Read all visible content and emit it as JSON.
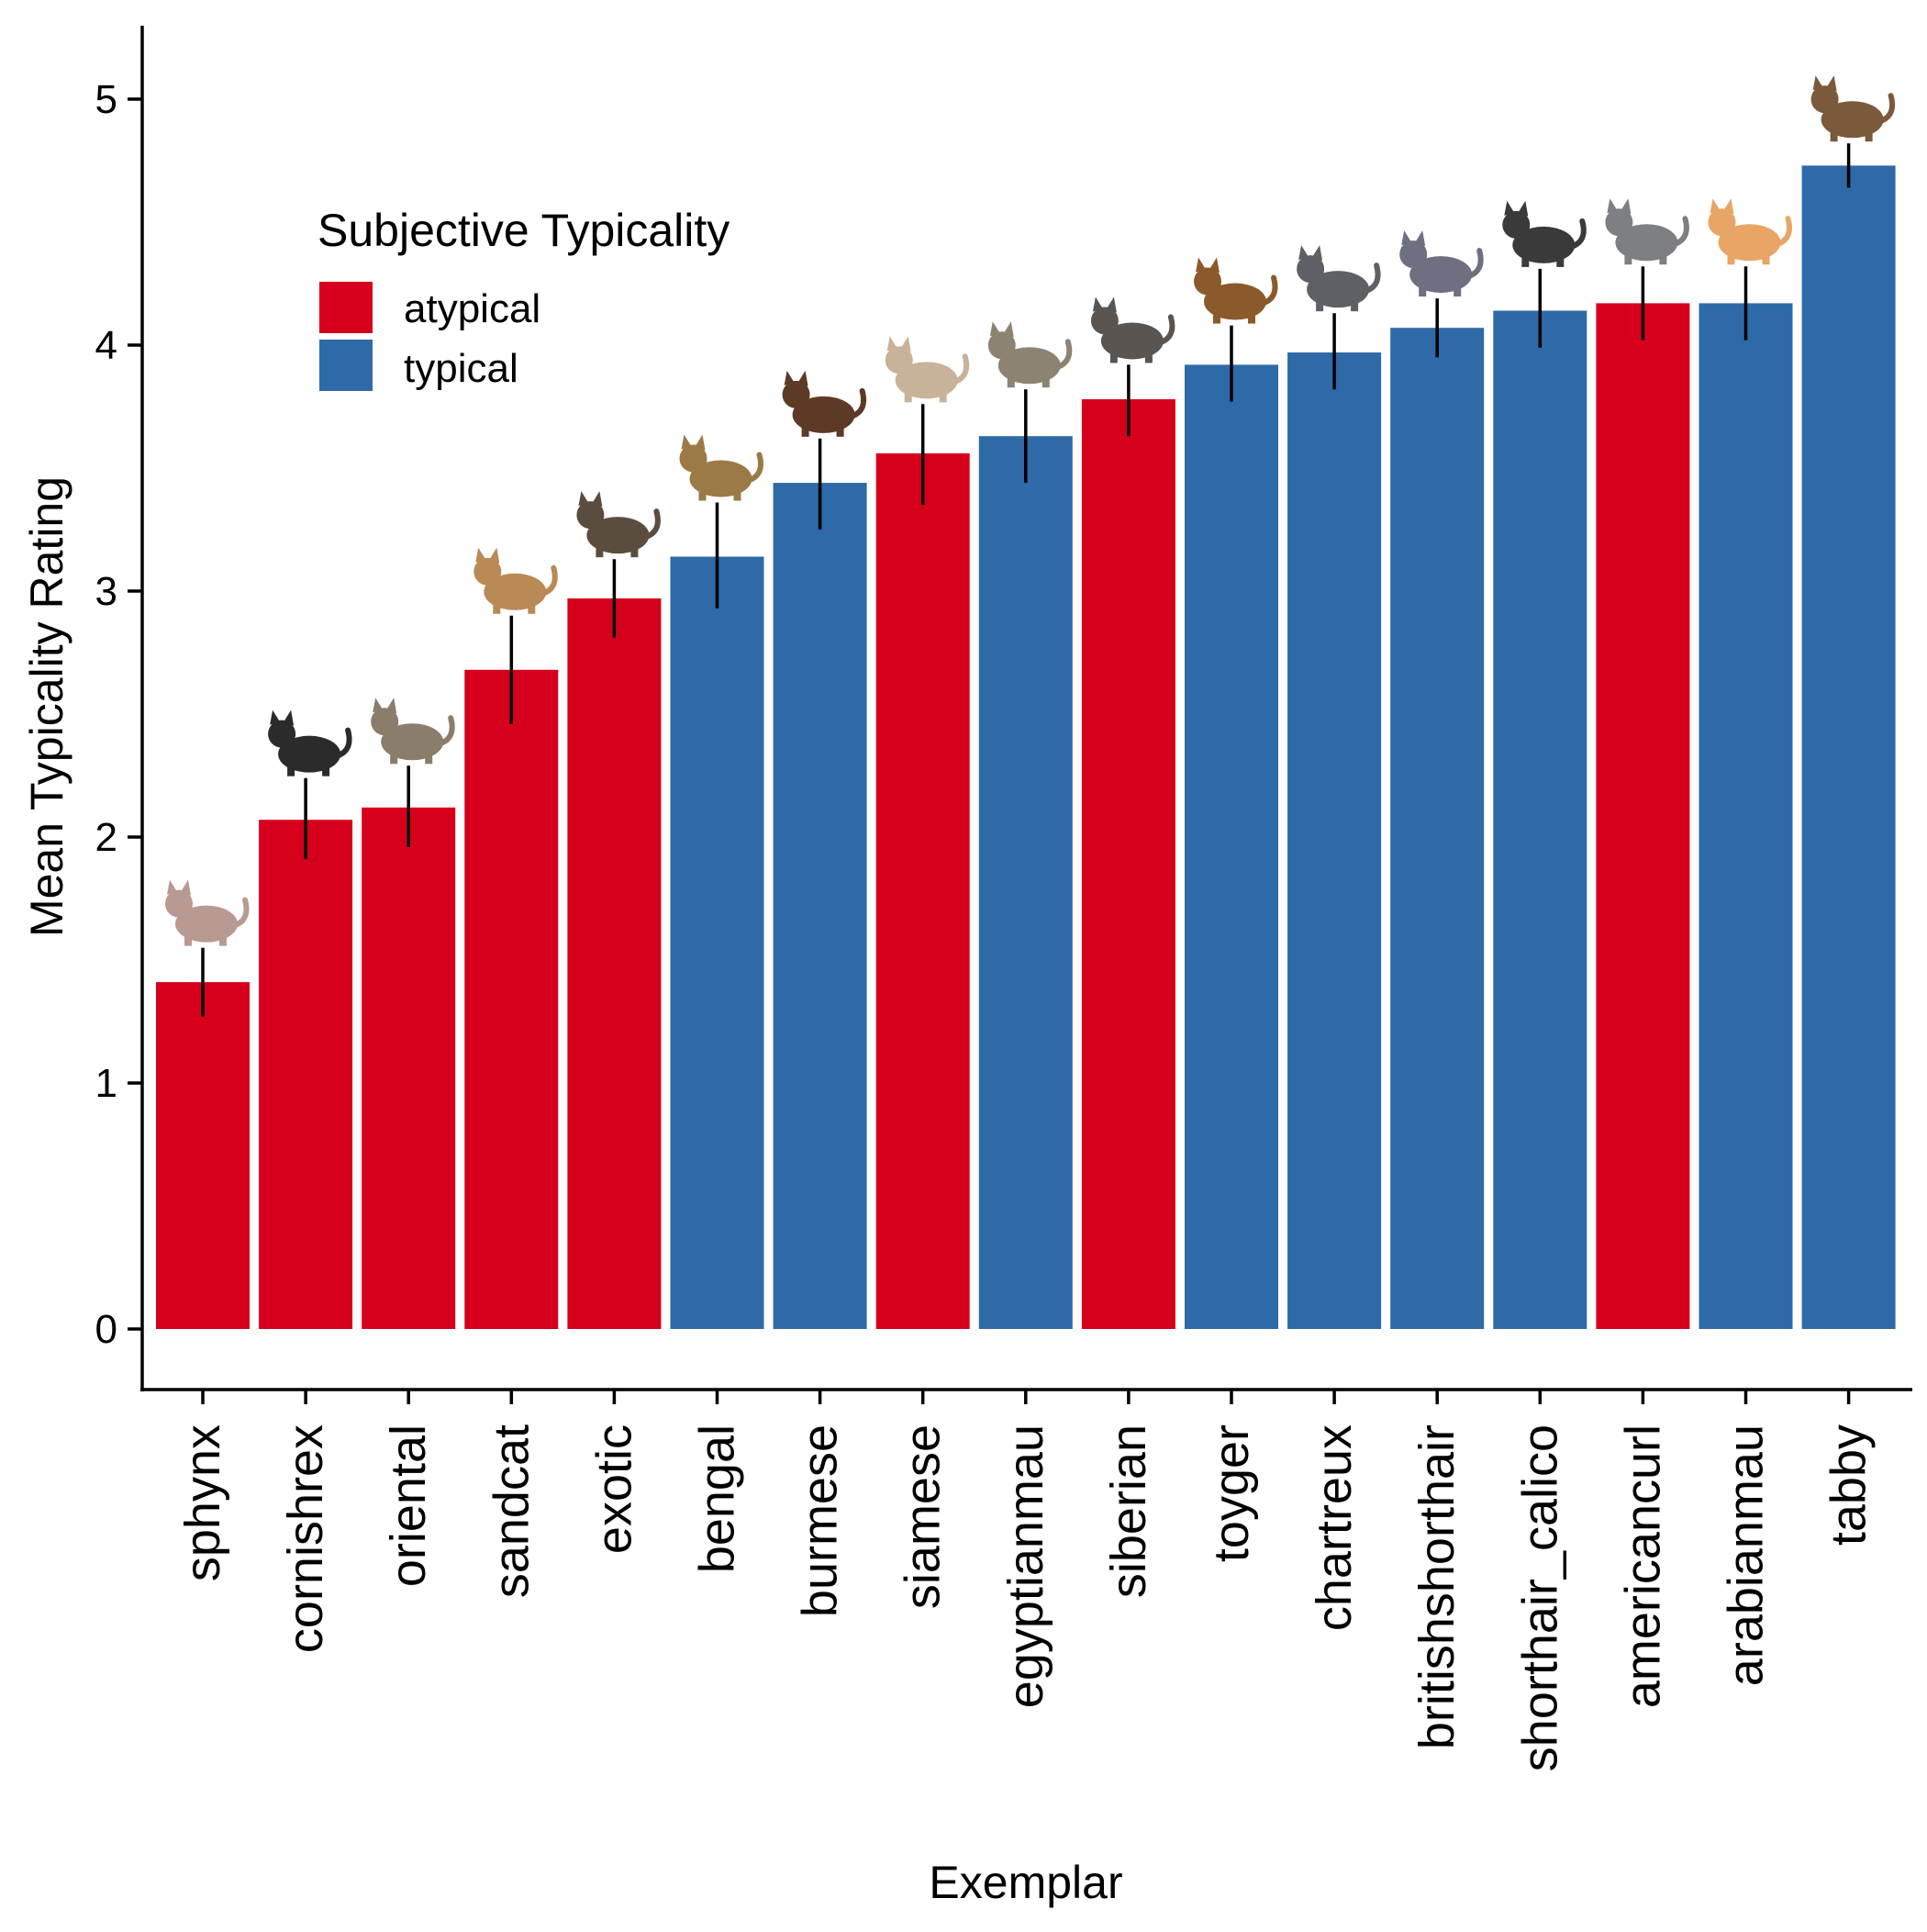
{
  "chart_data": {
    "type": "bar",
    "title": "",
    "xlabel": "Exemplar",
    "ylabel": "Mean Typicality Rating",
    "ylim": [
      -0.25,
      5.3
    ],
    "yticks": [
      0,
      1,
      2,
      3,
      4,
      5
    ],
    "yticks_labels": [
      "0",
      "1",
      "2",
      "3",
      "4",
      "5"
    ],
    "grid": false,
    "legend": {
      "title": "Subjective Typicality",
      "placement": "top-left",
      "entries": [
        {
          "label": "atypical",
          "color": "#D7001C"
        },
        {
          "label": "typical",
          "color": "#2E6AA8"
        }
      ]
    },
    "categories": [
      "sphynx",
      "cornishrex",
      "oriental",
      "sandcat",
      "exotic",
      "bengal",
      "burmese",
      "siamese",
      "egyptianmau",
      "siberian",
      "toyger",
      "chartreux",
      "britishshorthair",
      "shorthair_calico",
      "americancurl",
      "arabianmau",
      "tabby"
    ],
    "values": [
      1.41,
      2.07,
      2.12,
      2.68,
      2.97,
      3.14,
      3.44,
      3.56,
      3.63,
      3.78,
      3.92,
      3.97,
      4.07,
      4.14,
      4.17,
      4.17,
      4.73
    ],
    "error_low": [
      1.27,
      1.91,
      1.96,
      2.46,
      2.81,
      2.93,
      3.25,
      3.35,
      3.44,
      3.63,
      3.77,
      3.82,
      3.95,
      3.99,
      4.02,
      4.02,
      4.64
    ],
    "error_high": [
      1.55,
      2.24,
      2.29,
      2.9,
      3.13,
      3.36,
      3.62,
      3.76,
      3.82,
      3.92,
      4.08,
      4.13,
      4.19,
      4.31,
      4.32,
      4.32,
      4.82
    ],
    "groups": [
      "atypical",
      "atypical",
      "atypical",
      "atypical",
      "atypical",
      "typical",
      "typical",
      "atypical",
      "typical",
      "atypical",
      "typical",
      "typical",
      "typical",
      "typical",
      "atypical",
      "typical",
      "typical"
    ]
  }
}
